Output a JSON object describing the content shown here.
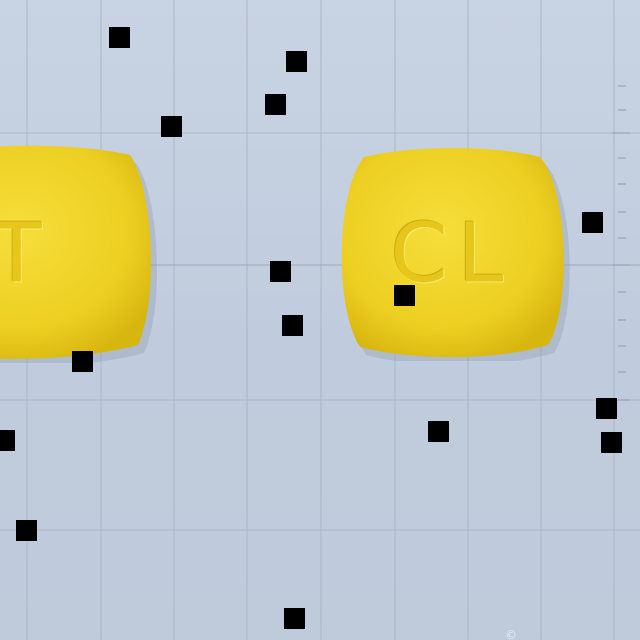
{
  "scene": {
    "background_color": "#c3cfe0",
    "pills": [
      {
        "imprint": "HT",
        "color": "#f2d52b"
      },
      {
        "imprint": "CL",
        "color": "#f2d52b"
      }
    ],
    "noise_squares_color": "#000000",
    "watermark_glyph": "©"
  }
}
